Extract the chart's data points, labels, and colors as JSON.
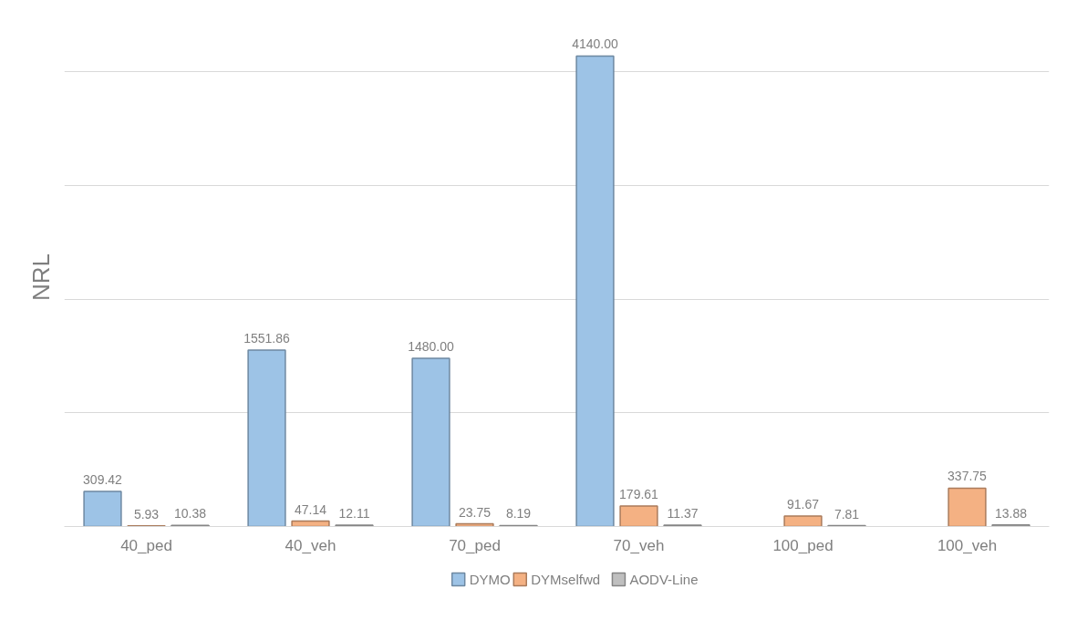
{
  "chart_data": {
    "type": "bar",
    "ylabel": "NRL",
    "categories": [
      "40_ped",
      "40_veh",
      "70_ped",
      "70_veh",
      "100_ped",
      "100_veh"
    ],
    "series": [
      {
        "name": "DYMO",
        "color": "#9dc3e6",
        "values": [
          309.42,
          1551.86,
          1480.0,
          4140.0,
          null,
          null
        ],
        "value_labels": [
          "309.42",
          "1551.86",
          "1480.00",
          "4140.00",
          null,
          null
        ]
      },
      {
        "name": "DYMselfwd",
        "color": "#f4b183",
        "values": [
          5.93,
          47.14,
          23.75,
          179.61,
          91.67,
          337.75
        ],
        "value_labels": [
          "5.93",
          "47.14",
          "23.75",
          "179.61",
          "91.67",
          "337.75"
        ]
      },
      {
        "name": "AODV-Line",
        "color": "#bfbfbf",
        "values": [
          10.38,
          12.11,
          8.19,
          11.37,
          7.81,
          13.88
        ],
        "value_labels": [
          "10.38",
          "12.11",
          "8.19",
          "11.37",
          "7.81",
          "13.88"
        ]
      }
    ],
    "tick_labels": "x",
    "grid": "y",
    "legend": "bottom"
  }
}
